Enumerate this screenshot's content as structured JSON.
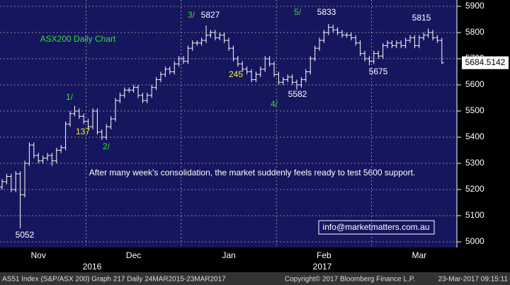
{
  "chart_data": {
    "type": "ohlc",
    "title": "ASX200 Daily Chart",
    "title_color": "#33dd33",
    "note": "After many week's consolidation, the market suddenly feels ready to test 5600 support.",
    "contact": "info@marketmatters.com.au",
    "categories": [
      null,
      null,
      null,
      null,
      null,
      null,
      null,
      null,
      "Nov",
      null,
      null,
      null,
      null,
      null,
      null,
      null,
      null,
      null,
      null,
      null,
      null,
      null,
      null,
      null,
      null,
      null,
      null,
      null,
      null,
      "Dec",
      null,
      null,
      null,
      null,
      null,
      null,
      null,
      null,
      null,
      null,
      null,
      null,
      null,
      null,
      null,
      null,
      null,
      null,
      null,
      null,
      "Jan",
      null,
      null,
      null,
      null,
      null,
      null,
      null,
      null,
      null,
      null,
      null,
      null,
      null,
      null,
      null,
      null,
      null,
      null,
      null,
      null,
      "Feb",
      null,
      null,
      null,
      null,
      null,
      null,
      null,
      null,
      null,
      null,
      null,
      null,
      null,
      null,
      null,
      null,
      null,
      null,
      null,
      null,
      "Mar",
      null,
      null,
      null,
      null,
      null
    ],
    "years": [
      "2016",
      "2017"
    ],
    "open": [
      5210,
      5230,
      5250,
      5200,
      5260,
      5180,
      5300,
      5370,
      5330,
      5310,
      5320,
      5330,
      5310,
      5350,
      5360,
      5450,
      5490,
      5500,
      5480,
      5460,
      5440,
      5500,
      5420,
      5400,
      5440,
      5470,
      5540,
      5560,
      5580,
      5580,
      5590,
      5560,
      5540,
      5560,
      5590,
      5620,
      5640,
      5660,
      5650,
      5680,
      5700,
      5690,
      5740,
      5760,
      5760,
      5770,
      5790,
      5800,
      5780,
      5790,
      5770,
      5740,
      5700,
      5680,
      5660,
      5650,
      5620,
      5640,
      5660,
      5700,
      5680,
      5640,
      5610,
      5620,
      5630,
      5610,
      5600,
      5620,
      5650,
      5700,
      5740,
      5770,
      5800,
      5820,
      5810,
      5800,
      5790,
      5790,
      5780,
      5760,
      5720,
      5700,
      5690,
      5720,
      5710,
      5750,
      5760,
      5750,
      5760,
      5750,
      5770,
      5780,
      5750,
      5780,
      5790,
      5800,
      5780,
      5770
    ],
    "high": [
      5240,
      5260,
      5260,
      5270,
      5270,
      5310,
      5380,
      5380,
      5340,
      5330,
      5340,
      5340,
      5360,
      5370,
      5460,
      5500,
      5520,
      5510,
      5490,
      5470,
      5510,
      5510,
      5430,
      5450,
      5480,
      5550,
      5570,
      5590,
      5590,
      5600,
      5600,
      5570,
      5570,
      5600,
      5630,
      5650,
      5670,
      5670,
      5690,
      5710,
      5710,
      5750,
      5770,
      5770,
      5780,
      5827,
      5810,
      5810,
      5800,
      5800,
      5780,
      5750,
      5710,
      5690,
      5670,
      5660,
      5650,
      5670,
      5710,
      5710,
      5690,
      5650,
      5630,
      5640,
      5640,
      5620,
      5630,
      5660,
      5710,
      5750,
      5780,
      5810,
      5833,
      5830,
      5820,
      5810,
      5800,
      5800,
      5790,
      5770,
      5730,
      5710,
      5730,
      5730,
      5760,
      5770,
      5770,
      5770,
      5770,
      5780,
      5790,
      5790,
      5790,
      5800,
      5815,
      5810,
      5790,
      5780
    ],
    "low": [
      5200,
      5220,
      5190,
      5190,
      5052,
      5170,
      5290,
      5320,
      5300,
      5300,
      5310,
      5290,
      5300,
      5340,
      5350,
      5440,
      5480,
      5470,
      5450,
      5430,
      5430,
      5410,
      5390,
      5390,
      5430,
      5460,
      5530,
      5550,
      5570,
      5570,
      5550,
      5530,
      5530,
      5550,
      5580,
      5610,
      5630,
      5640,
      5640,
      5670,
      5680,
      5680,
      5730,
      5750,
      5750,
      5760,
      5780,
      5770,
      5770,
      5760,
      5730,
      5690,
      5670,
      5650,
      5640,
      5610,
      5610,
      5630,
      5650,
      5670,
      5630,
      5600,
      5600,
      5610,
      5600,
      5582,
      5590,
      5610,
      5640,
      5690,
      5730,
      5760,
      5790,
      5800,
      5790,
      5780,
      5780,
      5770,
      5750,
      5710,
      5690,
      5675,
      5680,
      5700,
      5700,
      5740,
      5740,
      5740,
      5740,
      5740,
      5760,
      5740,
      5740,
      5770,
      5780,
      5770,
      5760,
      5680
    ],
    "close": [
      5230,
      5250,
      5200,
      5260,
      5180,
      5300,
      5370,
      5330,
      5310,
      5320,
      5330,
      5310,
      5350,
      5360,
      5450,
      5490,
      5500,
      5480,
      5460,
      5440,
      5500,
      5420,
      5400,
      5440,
      5470,
      5540,
      5560,
      5580,
      5580,
      5590,
      5560,
      5540,
      5560,
      5590,
      5620,
      5640,
      5660,
      5650,
      5680,
      5700,
      5690,
      5740,
      5760,
      5760,
      5770,
      5790,
      5800,
      5780,
      5790,
      5770,
      5740,
      5700,
      5680,
      5660,
      5650,
      5620,
      5640,
      5660,
      5700,
      5680,
      5640,
      5610,
      5620,
      5630,
      5610,
      5600,
      5620,
      5650,
      5700,
      5740,
      5770,
      5800,
      5820,
      5810,
      5800,
      5790,
      5790,
      5780,
      5760,
      5720,
      5700,
      5690,
      5720,
      5710,
      5750,
      5760,
      5750,
      5760,
      5750,
      5770,
      5780,
      5750,
      5780,
      5790,
      5800,
      5780,
      5770,
      5684.5142
    ],
    "color": "#ffffff",
    "background": "#16165e",
    "ylim": [
      5000,
      5900
    ],
    "yticks": [
      5000,
      5100,
      5200,
      5300,
      5400,
      5500,
      5600,
      5700,
      5800,
      5900
    ],
    "grid": true,
    "annotations": [
      {
        "text": "3/",
        "color": "#33dd33"
      },
      {
        "text": "5827",
        "color": "#ffffff"
      },
      {
        "text": "5/",
        "color": "#33dd33"
      },
      {
        "text": "5833",
        "color": "#ffffff"
      },
      {
        "text": "5815",
        "color": "#ffffff"
      },
      {
        "text": "1/",
        "color": "#33dd33"
      },
      {
        "text": "137",
        "color": "#ffee33"
      },
      {
        "text": "2/",
        "color": "#33dd33"
      },
      {
        "text": "245",
        "color": "#ffee33"
      },
      {
        "text": "4/",
        "color": "#33dd33"
      },
      {
        "text": "5582",
        "color": "#ffffff"
      },
      {
        "text": "5675",
        "color": "#ffffff"
      },
      {
        "text": "5052",
        "color": "#ffffff"
      }
    ],
    "footer": [
      "AS51 Index (S&P/ASX 200) Graph 217  Daily 24MAR2015-23MAR2017",
      "Copyright© 2017 Bloomberg Finance L.P.",
      "23-Mar-2017 09:15:11"
    ]
  }
}
